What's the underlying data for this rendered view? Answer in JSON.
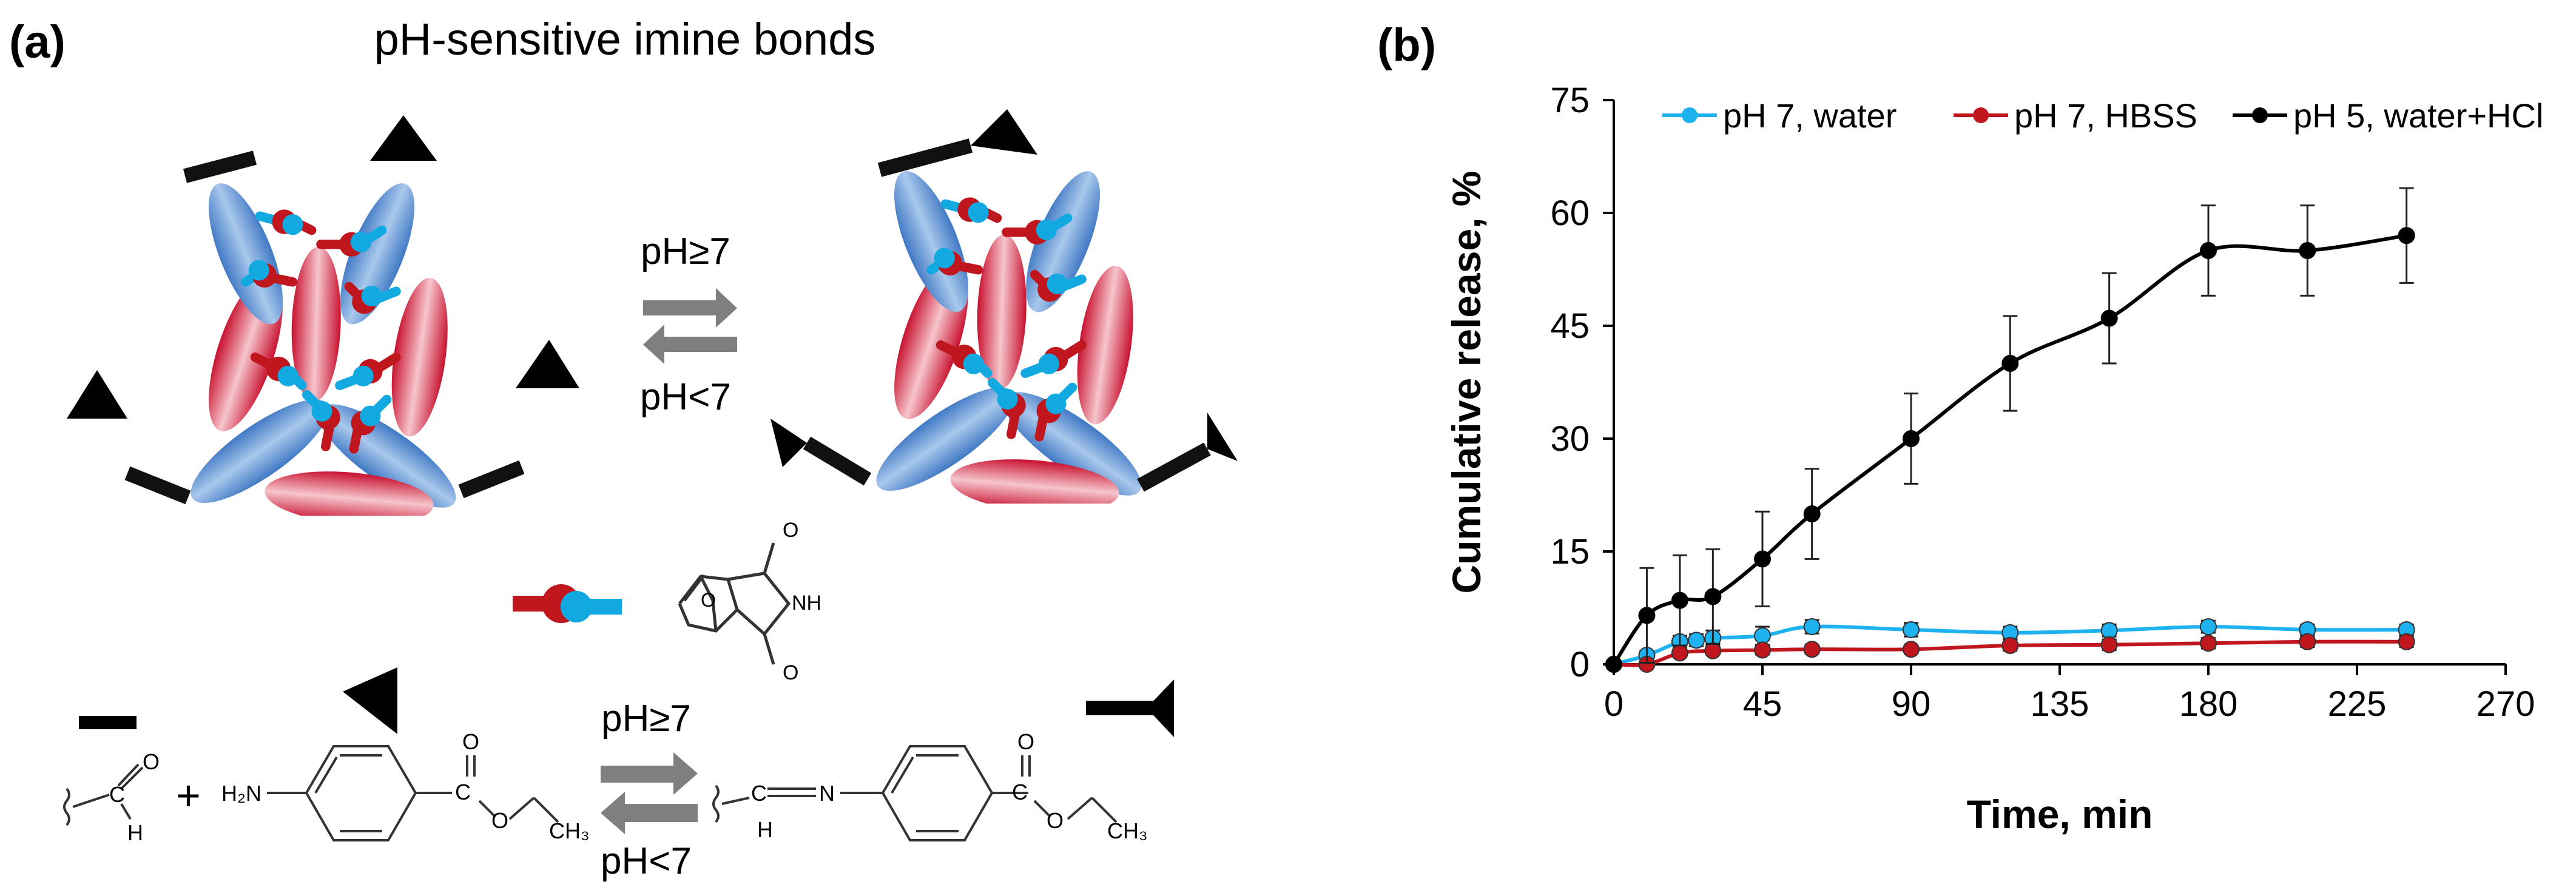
{
  "panel_a": {
    "label": "(a)",
    "title": "pH-sensitive imine bonds",
    "top_forward_label": "pH≥7",
    "top_reverse_label": "pH<7",
    "bottom_forward_label": "pH≥7",
    "bottom_reverse_label": "pH<7",
    "scheme_atoms": {
      "aldehyde_o": "O",
      "aldehyde_c": "C",
      "aldehyde_h": "H",
      "plus": "+",
      "amine": "H₂N",
      "ester_o_top": "O",
      "ester_c": "C",
      "ester_o": "O",
      "ester_ch3": "CH₃",
      "imine_c": "C",
      "imine_h": "H",
      "imine_n": "N",
      "product_o_top": "O",
      "product_c": "C",
      "product_o": "O",
      "product_ch3": "CH₃",
      "maleimide_o_top": "O",
      "maleimide_nh": "NH",
      "maleimide_o_bottom": "O",
      "bridge_o": "O"
    },
    "colors": {
      "blue_ellipse": "#5b8fcf",
      "red_ellipse": "#c8102e",
      "cyan_link": "#12a9e0",
      "red_link": "#c0161e",
      "arrow_gray": "#7f7f7f"
    }
  },
  "chart_data": {
    "panel_label": "(b)",
    "type": "line",
    "title": "",
    "xlabel": "Time, min",
    "ylabel": "Cumulative release, %",
    "xlim": [
      0,
      270
    ],
    "ylim": [
      0,
      75
    ],
    "xticks": [
      0,
      45,
      90,
      135,
      180,
      225,
      270
    ],
    "yticks": [
      0,
      15,
      30,
      45,
      60,
      75
    ],
    "grid": false,
    "legend_position": "top",
    "series": [
      {
        "name": "pH 7, water",
        "color": "#1fb2f0",
        "x": [
          0,
          10,
          20,
          25,
          30,
          45,
          60,
          90,
          120,
          150,
          180,
          210,
          240
        ],
        "y": [
          0,
          1.2,
          3.0,
          3.2,
          3.5,
          3.8,
          5.0,
          4.6,
          4.2,
          4.5,
          5.0,
          4.6,
          4.6
        ],
        "err": [
          0,
          0.6,
          0.8,
          0.8,
          1.0,
          1.2,
          0.9,
          0.9,
          0.8,
          0.8,
          0.8,
          0.7,
          0.7
        ]
      },
      {
        "name": "pH 7, HBSS",
        "color": "#c0161e",
        "x": [
          0,
          10,
          20,
          30,
          45,
          60,
          90,
          120,
          150,
          180,
          210,
          240
        ],
        "y": [
          0,
          0,
          1.5,
          1.8,
          1.9,
          2.0,
          2.0,
          2.5,
          2.6,
          2.8,
          3.0,
          3.0
        ],
        "err": [
          0,
          0,
          0.5,
          0.5,
          0.6,
          0.6,
          0.6,
          0.7,
          0.7,
          0.7,
          0.7,
          0.7
        ]
      },
      {
        "name": "pH 5, water+HCl",
        "color": "#000000",
        "x": [
          0,
          10,
          20,
          30,
          45,
          60,
          90,
          120,
          150,
          180,
          210,
          240
        ],
        "y": [
          0,
          6.5,
          8.5,
          9.0,
          14.0,
          20.0,
          30.0,
          40.0,
          46.0,
          55.0,
          55.0,
          57.0
        ],
        "err": [
          0,
          6.3,
          6.0,
          6.3,
          6.3,
          6.0,
          6.0,
          6.3,
          6.0,
          6.0,
          6.0,
          6.3
        ]
      }
    ]
  }
}
